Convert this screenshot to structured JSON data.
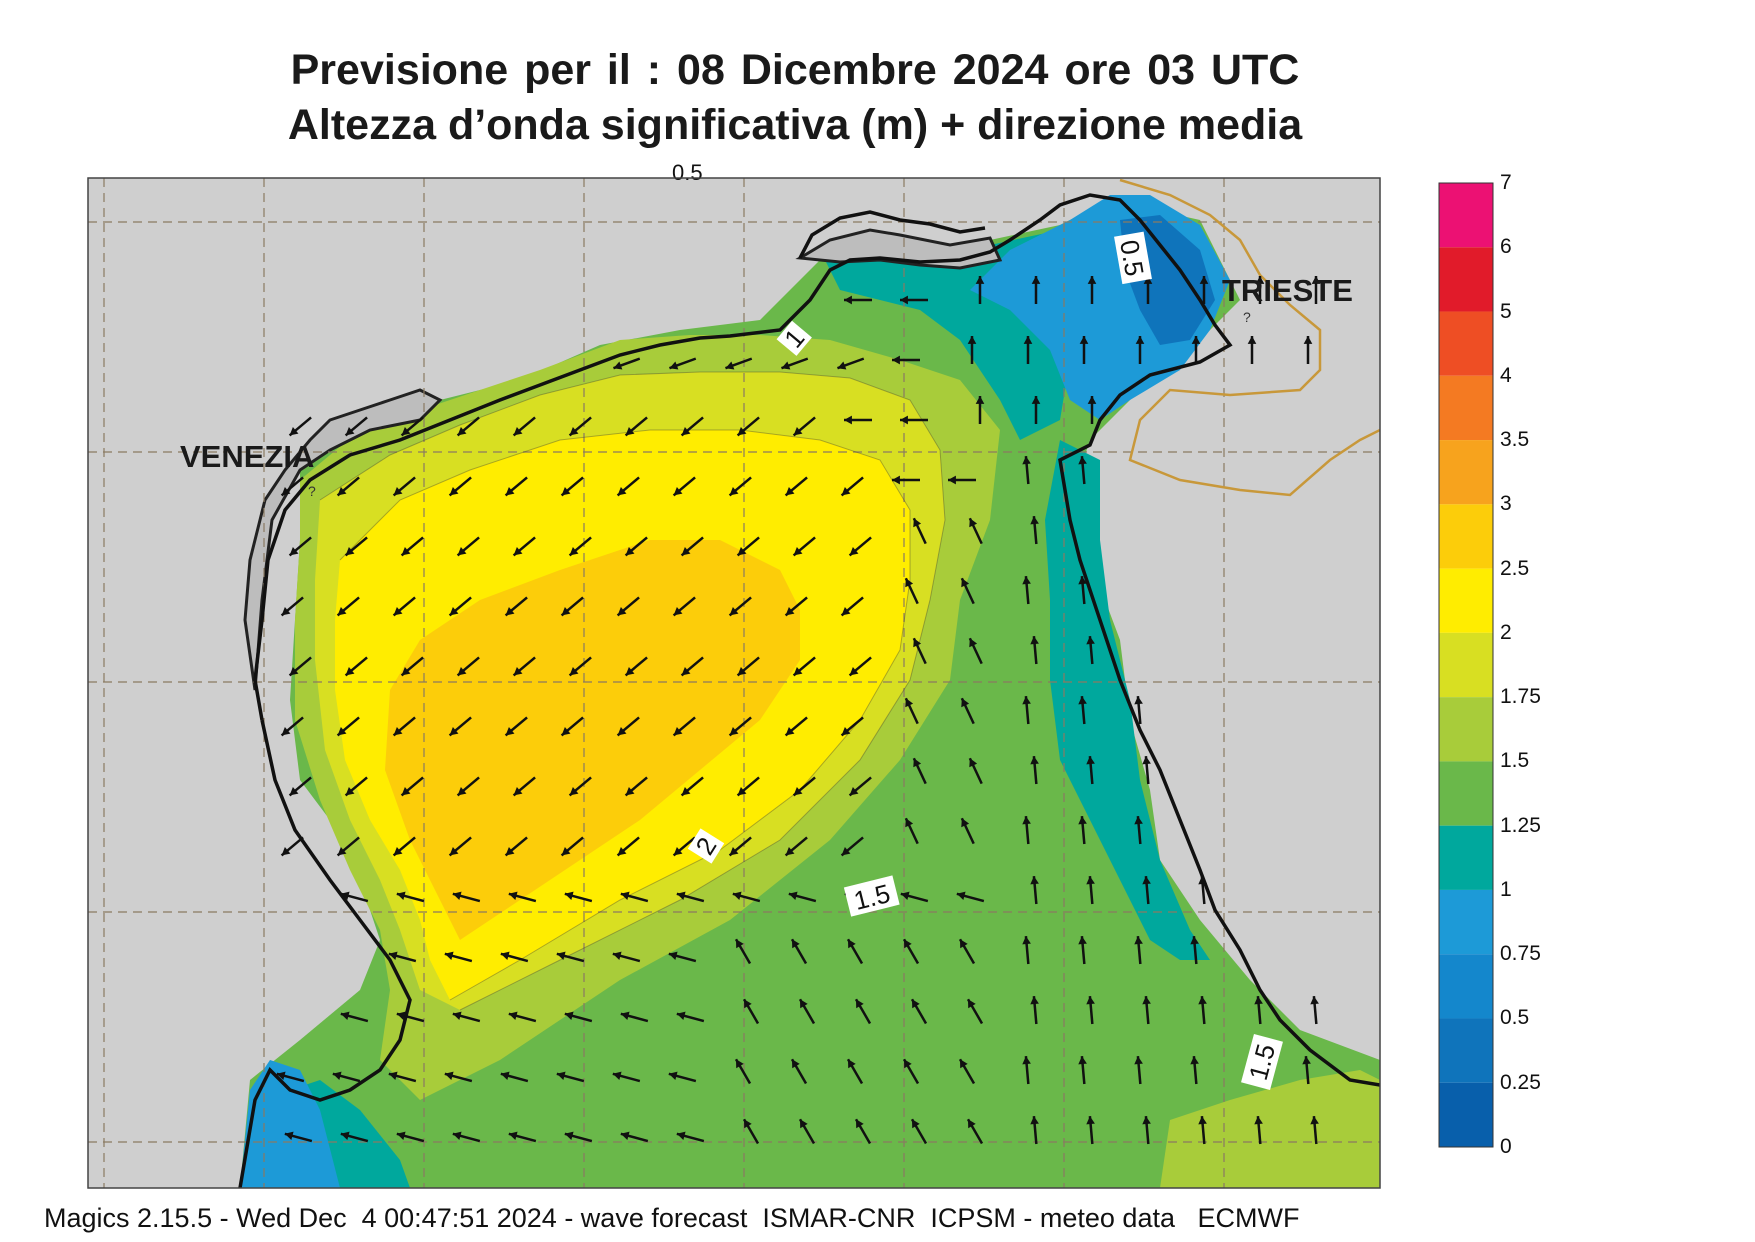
{
  "header": {
    "line1": "Previsione per il  :  08 Dicembre  2024   ore 03 UTC",
    "line2": "Altezza d’onda significativa (m) + direzione media"
  },
  "map": {
    "cities": [
      "VENEZIA",
      "TRIESTE"
    ],
    "contour_labels": [
      "0.5",
      "1",
      "2",
      "1.5",
      "1.5"
    ],
    "top_cut_label": "0.5"
  },
  "legend": {
    "title": "",
    "levels": [
      "7",
      "6",
      "5",
      "4",
      "3.5",
      "3",
      "2.5",
      "2",
      "1.75",
      "1.5",
      "1.25",
      "1",
      "0.75",
      "0.5",
      "0.25",
      "0"
    ],
    "colors": [
      "#ec1173",
      "#e11b2a",
      "#ee4e24",
      "#f47a22",
      "#f7a31d",
      "#fccd0a",
      "#ffed00",
      "#d8df22",
      "#a8cc3a",
      "#6ab84a",
      "#00a89d",
      "#1d9ad7",
      "#1487cc",
      "#0f74bb",
      "#085fab"
    ]
  },
  "footer": {
    "text": "Magics 2.15.5 - Wed Dec  4 00:47:51 2024 - wave forecast  ISMAR-CNR  ICPSM - meteo data   ECMWF"
  }
}
